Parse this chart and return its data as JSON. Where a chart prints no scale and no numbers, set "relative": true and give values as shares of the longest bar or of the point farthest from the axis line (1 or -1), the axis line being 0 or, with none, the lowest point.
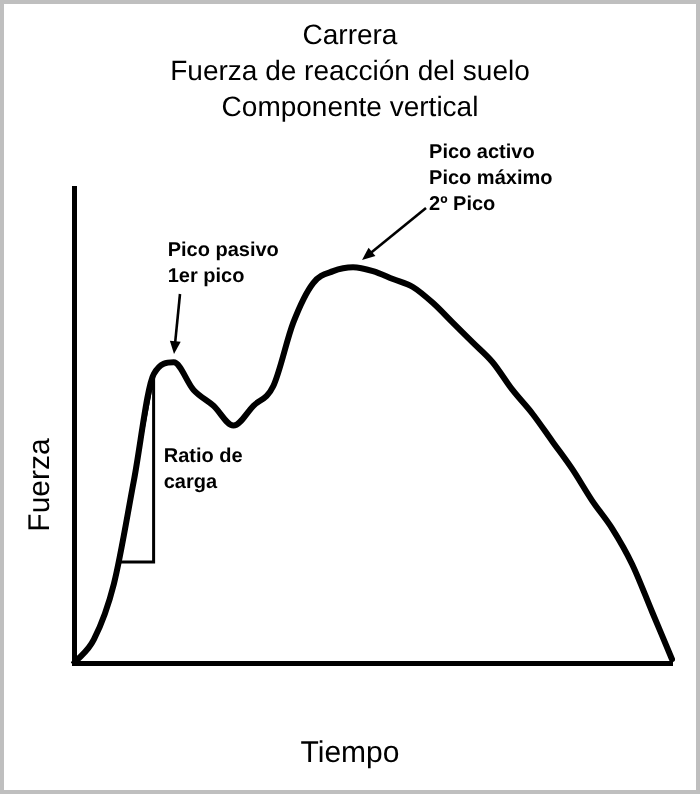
{
  "chart_data": {
    "type": "line",
    "title": "Carrera\nFuerza de reacción del suelo\nComponente vertical",
    "xlabel": "Tiempo",
    "ylabel": "Fuerza",
    "relative": true,
    "categories": [
      null,
      null,
      null,
      null,
      null,
      null,
      null,
      null,
      null,
      null,
      null,
      null,
      null,
      null,
      null,
      null,
      null,
      null,
      null,
      null,
      null,
      null,
      null,
      null,
      null,
      null,
      null,
      null,
      null,
      null,
      null
    ],
    "series": [
      {
        "color": "#000000",
        "values": [
          0,
          0.06,
          0.2,
          0.46,
          0.73,
          0.76,
          0.69,
          0.65,
          0.6,
          0.65,
          0.7,
          0.86,
          0.96,
          0.99,
          1,
          0.99,
          0.97,
          0.95,
          0.91,
          0.86,
          0.81,
          0.76,
          0.69,
          0.63,
          0.56,
          0.49,
          0.41,
          0.34,
          0.25,
          0.13,
          0.01
        ]
      }
    ],
    "annotations": [
      "Pico pasivo\n1er pico",
      "Pico activo\nPico máximo\n2º Pico",
      "Ratio de\ncarga"
    ],
    "legend": false,
    "grid": false,
    "marker": "none",
    "line_style": "solid"
  }
}
